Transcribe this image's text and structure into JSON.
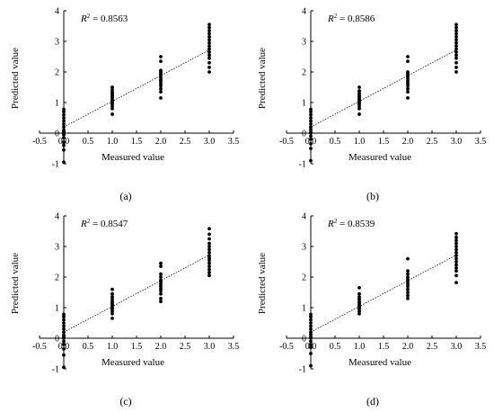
{
  "chart_data": [
    {
      "type": "scatter",
      "caption": "(a)",
      "r2_label": "R",
      "r2_sup": "2",
      "r2_value": " = 0.8563",
      "xlabel": "Measured value",
      "ylabel": "Predicted value",
      "xlim": [
        -0.5,
        3.5
      ],
      "ylim": [
        -1,
        4
      ],
      "xticks": [
        "-0.5",
        "0.0",
        "0.5",
        "1.0",
        "1.5",
        "2.0",
        "2.5",
        "3.0",
        "3.5"
      ],
      "yticks": [
        "-1",
        "0",
        "1",
        "2",
        "3",
        "4"
      ],
      "fit_line": {
        "x": [
          0,
          3.0
        ],
        "y": [
          0.2,
          2.72
        ]
      },
      "points": [
        [
          0,
          -0.95
        ],
        [
          0,
          -0.55
        ],
        [
          0,
          -0.4
        ],
        [
          0,
          -0.3
        ],
        [
          0,
          -0.15
        ],
        [
          0,
          -0.05
        ],
        [
          0,
          0.0
        ],
        [
          0,
          0.05
        ],
        [
          0,
          0.1
        ],
        [
          0,
          0.2
        ],
        [
          0,
          0.3
        ],
        [
          0,
          0.4
        ],
        [
          0,
          0.5
        ],
        [
          0,
          0.6
        ],
        [
          0,
          0.7
        ],
        [
          0,
          0.78
        ],
        [
          1,
          0.62
        ],
        [
          1,
          0.8
        ],
        [
          1,
          0.88
        ],
        [
          1,
          0.95
        ],
        [
          1,
          1.0
        ],
        [
          1,
          1.05
        ],
        [
          1,
          1.1
        ],
        [
          1,
          1.15
        ],
        [
          1,
          1.2
        ],
        [
          1,
          1.25
        ],
        [
          1,
          1.3
        ],
        [
          1,
          1.35
        ],
        [
          1,
          1.42
        ],
        [
          1,
          1.5
        ],
        [
          2,
          1.15
        ],
        [
          2,
          1.35
        ],
        [
          2,
          1.45
        ],
        [
          2,
          1.55
        ],
        [
          2,
          1.62
        ],
        [
          2,
          1.7
        ],
        [
          2,
          1.75
        ],
        [
          2,
          1.82
        ],
        [
          2,
          1.9
        ],
        [
          2,
          1.95
        ],
        [
          2,
          2.0
        ],
        [
          2,
          2.05
        ],
        [
          2,
          2.35
        ],
        [
          2,
          2.5
        ],
        [
          3,
          2.0
        ],
        [
          3,
          2.15
        ],
        [
          3,
          2.3
        ],
        [
          3,
          2.45
        ],
        [
          3,
          2.55
        ],
        [
          3,
          2.65
        ],
        [
          3,
          2.75
        ],
        [
          3,
          2.85
        ],
        [
          3,
          2.95
        ],
        [
          3,
          3.05
        ],
        [
          3,
          3.15
        ],
        [
          3,
          3.25
        ],
        [
          3,
          3.35
        ],
        [
          3,
          3.45
        ],
        [
          3,
          3.55
        ]
      ]
    },
    {
      "type": "scatter",
      "caption": "(b)",
      "r2_label": "R",
      "r2_sup": "2",
      "r2_value": " = 0.8586",
      "xlabel": "Measured value",
      "ylabel": "Predicted value",
      "xlim": [
        -0.5,
        3.5
      ],
      "ylim": [
        -1,
        4
      ],
      "xticks": [
        "-0.5",
        "0.0",
        "0.5",
        "1.0",
        "1.5",
        "2.0",
        "2.5",
        "3.0",
        "3.5"
      ],
      "yticks": [
        "-1",
        "0",
        "1",
        "2",
        "3",
        "4"
      ],
      "fit_line": {
        "x": [
          0,
          3.0
        ],
        "y": [
          0.2,
          2.72
        ]
      },
      "points": [
        [
          0,
          -0.9
        ],
        [
          0,
          -0.5
        ],
        [
          0,
          -0.35
        ],
        [
          0,
          -0.2
        ],
        [
          0,
          -0.1
        ],
        [
          0,
          0.0
        ],
        [
          0,
          0.05
        ],
        [
          0,
          0.12
        ],
        [
          0,
          0.2
        ],
        [
          0,
          0.3
        ],
        [
          0,
          0.4
        ],
        [
          0,
          0.5
        ],
        [
          0,
          0.6
        ],
        [
          0,
          0.7
        ],
        [
          0,
          0.78
        ],
        [
          1,
          0.62
        ],
        [
          1,
          0.8
        ],
        [
          1,
          0.88
        ],
        [
          1,
          0.95
        ],
        [
          1,
          1.0
        ],
        [
          1,
          1.05
        ],
        [
          1,
          1.1
        ],
        [
          1,
          1.15
        ],
        [
          1,
          1.2
        ],
        [
          1,
          1.25
        ],
        [
          1,
          1.3
        ],
        [
          1,
          1.38
        ],
        [
          1,
          1.5
        ],
        [
          2,
          1.15
        ],
        [
          2,
          1.35
        ],
        [
          2,
          1.45
        ],
        [
          2,
          1.55
        ],
        [
          2,
          1.62
        ],
        [
          2,
          1.7
        ],
        [
          2,
          1.78
        ],
        [
          2,
          1.85
        ],
        [
          2,
          1.9
        ],
        [
          2,
          1.95
        ],
        [
          2,
          2.0
        ],
        [
          2,
          2.35
        ],
        [
          2,
          2.5
        ],
        [
          3,
          2.0
        ],
        [
          3,
          2.15
        ],
        [
          3,
          2.3
        ],
        [
          3,
          2.45
        ],
        [
          3,
          2.55
        ],
        [
          3,
          2.65
        ],
        [
          3,
          2.75
        ],
        [
          3,
          2.85
        ],
        [
          3,
          2.95
        ],
        [
          3,
          3.05
        ],
        [
          3,
          3.15
        ],
        [
          3,
          3.25
        ],
        [
          3,
          3.35
        ],
        [
          3,
          3.45
        ],
        [
          3,
          3.55
        ]
      ]
    },
    {
      "type": "scatter",
      "caption": "(c)",
      "r2_label": "R",
      "r2_sup": "2",
      "r2_value": " = 0.8547",
      "xlabel": "Measured value",
      "ylabel": "Predicted value",
      "xlim": [
        -0.5,
        3.5
      ],
      "ylim": [
        -1,
        4
      ],
      "xticks": [
        "-0.5",
        "0.0",
        "0.5",
        "1.0",
        "1.5",
        "2.0",
        "2.5",
        "3.0",
        "3.5"
      ],
      "yticks": [
        "-1",
        "0",
        "1",
        "2",
        "3",
        "4"
      ],
      "fit_line": {
        "x": [
          0,
          3.0
        ],
        "y": [
          0.2,
          2.72
        ]
      },
      "points": [
        [
          0,
          -0.95
        ],
        [
          0,
          -0.55
        ],
        [
          0,
          -0.35
        ],
        [
          0,
          -0.2
        ],
        [
          0,
          -0.1
        ],
        [
          0,
          0.0
        ],
        [
          0,
          0.05
        ],
        [
          0,
          0.1
        ],
        [
          0,
          0.2
        ],
        [
          0,
          0.3
        ],
        [
          0,
          0.4
        ],
        [
          0,
          0.5
        ],
        [
          0,
          0.6
        ],
        [
          0,
          0.7
        ],
        [
          0,
          0.78
        ],
        [
          1,
          0.65
        ],
        [
          1,
          0.8
        ],
        [
          1,
          0.88
        ],
        [
          1,
          0.95
        ],
        [
          1,
          1.0
        ],
        [
          1,
          1.05
        ],
        [
          1,
          1.1
        ],
        [
          1,
          1.15
        ],
        [
          1,
          1.2
        ],
        [
          1,
          1.28
        ],
        [
          1,
          1.35
        ],
        [
          1,
          1.45
        ],
        [
          1,
          1.6
        ],
        [
          2,
          1.2
        ],
        [
          2,
          1.3
        ],
        [
          2,
          1.45
        ],
        [
          2,
          1.55
        ],
        [
          2,
          1.62
        ],
        [
          2,
          1.7
        ],
        [
          2,
          1.78
        ],
        [
          2,
          1.85
        ],
        [
          2,
          1.9
        ],
        [
          2,
          2.0
        ],
        [
          2,
          2.1
        ],
        [
          2,
          2.35
        ],
        [
          2,
          2.45
        ],
        [
          3,
          2.05
        ],
        [
          3,
          2.15
        ],
        [
          3,
          2.25
        ],
        [
          3,
          2.35
        ],
        [
          3,
          2.45
        ],
        [
          3,
          2.55
        ],
        [
          3,
          2.62
        ],
        [
          3,
          2.7
        ],
        [
          3,
          2.8
        ],
        [
          3,
          2.9
        ],
        [
          3,
          3.0
        ],
        [
          3,
          3.1
        ],
        [
          3,
          3.25
        ],
        [
          3,
          3.4
        ],
        [
          3,
          3.58
        ]
      ]
    },
    {
      "type": "scatter",
      "caption": "(d)",
      "r2_label": "R",
      "r2_sup": "2",
      "r2_value": " = 0.8539",
      "xlabel": "Measured value",
      "ylabel": "Predicted value",
      "xlim": [
        -0.5,
        3.5
      ],
      "ylim": [
        -1,
        4
      ],
      "xticks": [
        "-0.5",
        "0.0",
        "0.5",
        "1.0",
        "1.5",
        "2.0",
        "2.5",
        "3.0",
        "3.5"
      ],
      "yticks": [
        "-1",
        "0",
        "1",
        "2",
        "3",
        "4"
      ],
      "fit_line": {
        "x": [
          0,
          3.0
        ],
        "y": [
          0.2,
          2.72
        ]
      },
      "points": [
        [
          0,
          -0.9
        ],
        [
          0,
          -0.5
        ],
        [
          0,
          -0.3
        ],
        [
          0,
          -0.2
        ],
        [
          0,
          -0.1
        ],
        [
          0,
          0.0
        ],
        [
          0,
          0.05
        ],
        [
          0,
          0.12
        ],
        [
          0,
          0.2
        ],
        [
          0,
          0.3
        ],
        [
          0,
          0.4
        ],
        [
          0,
          0.5
        ],
        [
          0,
          0.6
        ],
        [
          0,
          0.7
        ],
        [
          0,
          0.78
        ],
        [
          1,
          0.8
        ],
        [
          1,
          0.88
        ],
        [
          1,
          0.95
        ],
        [
          1,
          1.0
        ],
        [
          1,
          1.05
        ],
        [
          1,
          1.1
        ],
        [
          1,
          1.15
        ],
        [
          1,
          1.2
        ],
        [
          1,
          1.28
        ],
        [
          1,
          1.35
        ],
        [
          1,
          1.45
        ],
        [
          1,
          1.65
        ],
        [
          2,
          1.3
        ],
        [
          2,
          1.4
        ],
        [
          2,
          1.5
        ],
        [
          2,
          1.6
        ],
        [
          2,
          1.7
        ],
        [
          2,
          1.78
        ],
        [
          2,
          1.85
        ],
        [
          2,
          1.92
        ],
        [
          2,
          2.0
        ],
        [
          2,
          2.1
        ],
        [
          2,
          2.2
        ],
        [
          2,
          2.6
        ],
        [
          3,
          1.82
        ],
        [
          3,
          2.05
        ],
        [
          3,
          2.2
        ],
        [
          3,
          2.3
        ],
        [
          3,
          2.4
        ],
        [
          3,
          2.5
        ],
        [
          3,
          2.6
        ],
        [
          3,
          2.7
        ],
        [
          3,
          2.8
        ],
        [
          3,
          2.9
        ],
        [
          3,
          3.0
        ],
        [
          3,
          3.1
        ],
        [
          3,
          3.2
        ],
        [
          3,
          3.3
        ],
        [
          3,
          3.42
        ]
      ]
    }
  ]
}
